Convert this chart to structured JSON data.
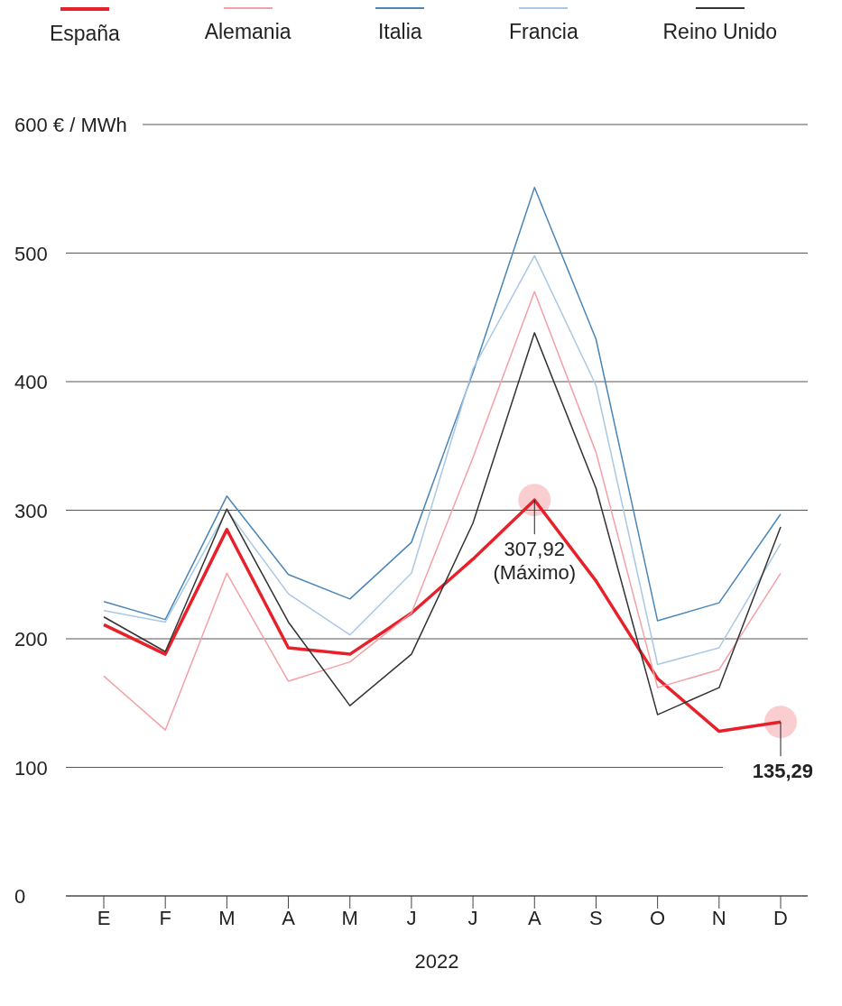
{
  "chart_data": {
    "type": "line",
    "xlabel": "2022",
    "categories": [
      "E",
      "F",
      "M",
      "A",
      "M",
      "J",
      "J",
      "A",
      "S",
      "O",
      "N",
      "D"
    ],
    "ylim": [
      0,
      600
    ],
    "yticks": [
      0,
      100,
      200,
      300,
      400,
      500,
      {
        "value": 600,
        "label": "600 € / MWh"
      }
    ],
    "grid": "y",
    "legend": "top",
    "series": [
      {
        "name": "España",
        "color": "#e8202a",
        "values": [
          211,
          188,
          285,
          193,
          188,
          220,
          262,
          307.92,
          245,
          169,
          128,
          135.29
        ],
        "value_labels": [
          null,
          null,
          null,
          null,
          null,
          null,
          null,
          "307,92\n(Máximo)",
          null,
          null,
          null,
          "135,29"
        ]
      },
      {
        "name": "Alemania",
        "color": "#f4a0a6",
        "values": [
          171,
          129,
          251,
          167,
          182,
          220,
          341,
          470,
          345,
          162,
          176,
          251
        ]
      },
      {
        "name": "Italia",
        "color": "#4a86b8",
        "values": [
          229,
          215,
          311,
          250,
          231,
          275,
          407,
          551,
          433,
          214,
          228,
          297
        ]
      },
      {
        "name": "Francia",
        "color": "#a9c8e4",
        "values": [
          222,
          213,
          300,
          235,
          203,
          251,
          410,
          498,
          397,
          180,
          193,
          274
        ]
      },
      {
        "name": "Reino Unido",
        "color": "#333333",
        "values": [
          217,
          190,
          301,
          213,
          148,
          188,
          290,
          438,
          317,
          141,
          162,
          287
        ]
      }
    ]
  }
}
